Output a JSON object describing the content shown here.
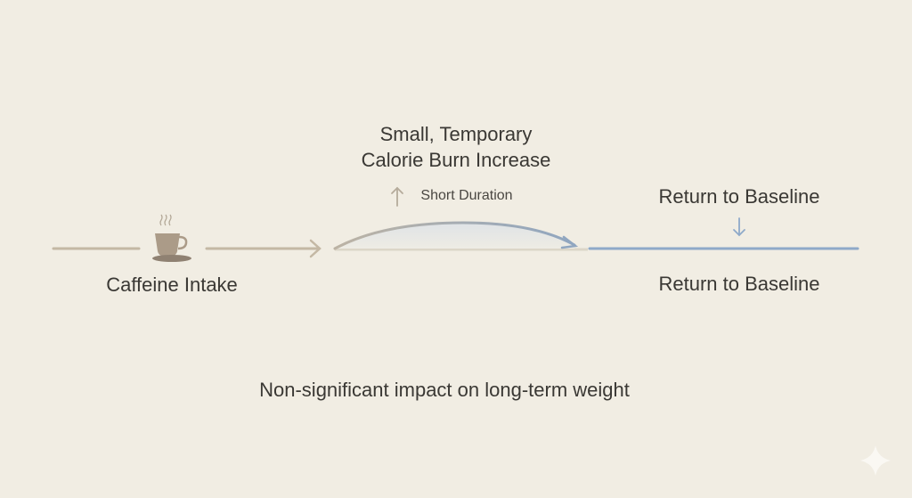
{
  "labels": {
    "cause": "Caffeine Intake",
    "effect_line1": "Small, Temporary",
    "effect_line2": "Calorie Burn Increase",
    "duration": "Short Duration",
    "return_top": "Return to Baseline",
    "return_bottom": "Return to Baseline",
    "conclusion": "Non-significant impact on long-term weight"
  },
  "colors": {
    "background": "#f1ede3",
    "line_tan": "#bcb09c",
    "cup": "#a89886",
    "baseline_blue": "#8fa9c9",
    "text": "#3a3834"
  },
  "icons": [
    "coffee-cup-icon",
    "arrow-up-icon",
    "arrow-down-icon",
    "sparkle-icon"
  ]
}
